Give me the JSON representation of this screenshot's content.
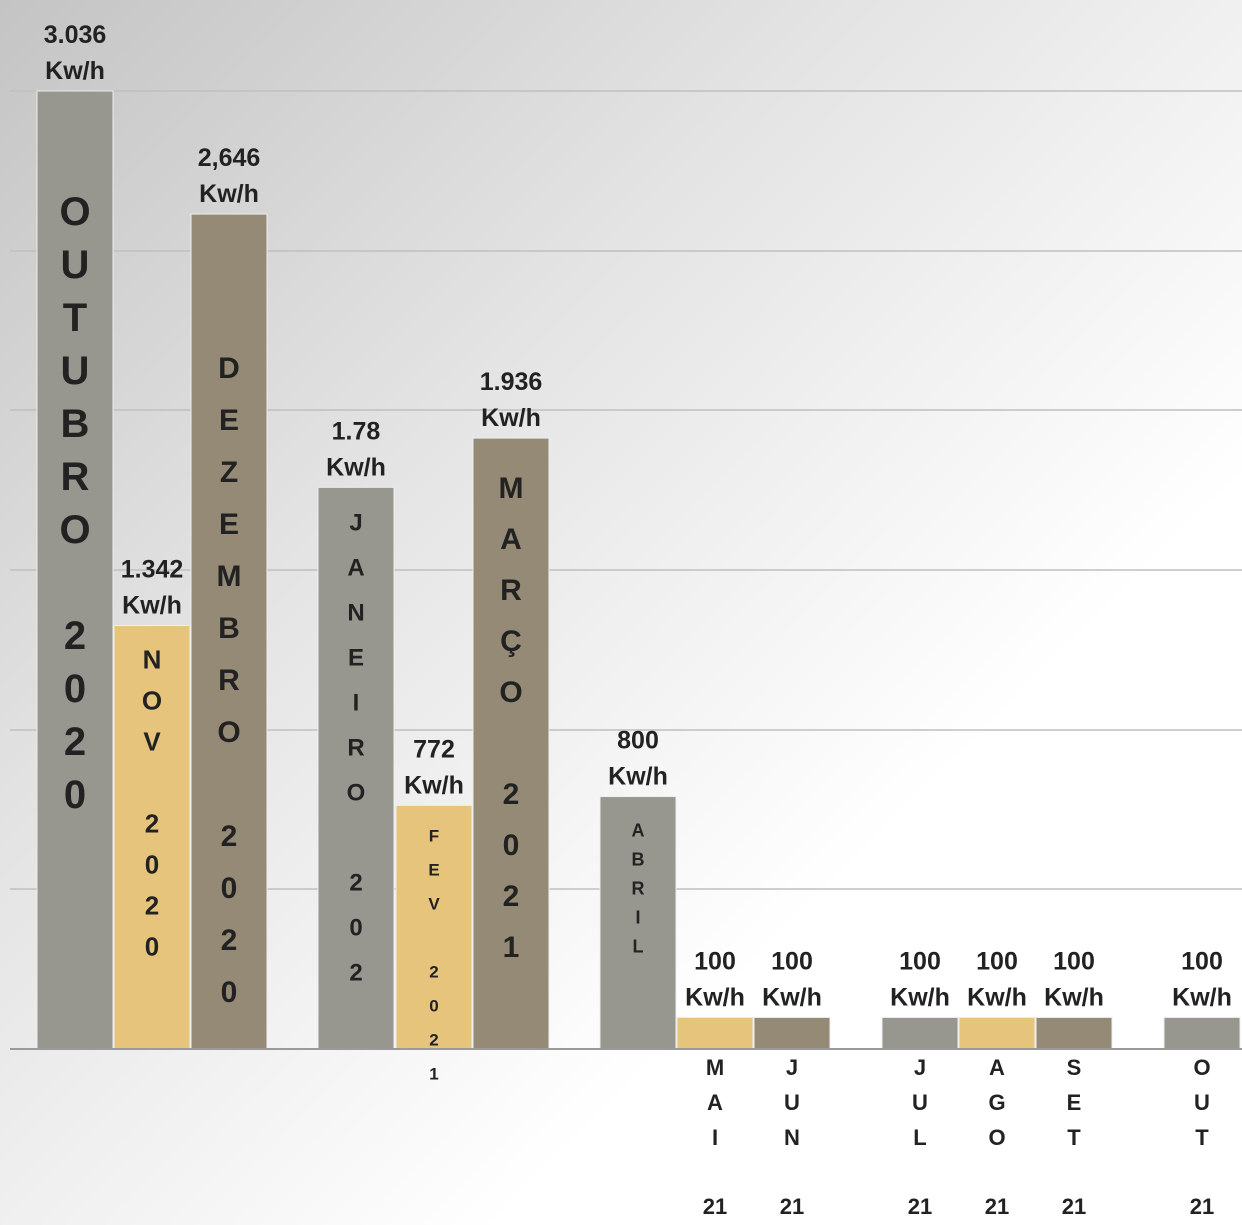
{
  "chart_data": {
    "type": "bar",
    "grid": true,
    "legend": "none",
    "ylim": [
      0,
      3300
    ],
    "bars": [
      {
        "value": 3036,
        "label": [
          "3.036",
          "Kw/h"
        ],
        "inner": [
          "O",
          "U",
          "T",
          "U",
          "B",
          "R",
          "O",
          "",
          "2",
          "0",
          "2",
          "0"
        ],
        "color": "#979790",
        "outside": []
      },
      {
        "value": 1342,
        "label": [
          "1.342",
          "Kw/h"
        ],
        "inner": [
          "N",
          "O",
          "V",
          "",
          "2",
          "0",
          "2",
          "0"
        ],
        "color": "#e7c47c",
        "outside": []
      },
      {
        "value": 2646,
        "label": [
          "2,646",
          "Kw/h"
        ],
        "inner": [
          "D",
          "E",
          "Z",
          "E",
          "M",
          "B",
          "R",
          "O",
          "",
          "2",
          "0",
          "2",
          "0"
        ],
        "color": "#958a75",
        "outside": []
      },
      {
        "value": 1780,
        "label": [
          "1.78",
          "Kw/h"
        ],
        "inner": [
          "J",
          "A",
          "N",
          "E",
          "I",
          "R",
          "O",
          "",
          "2",
          "0",
          "2"
        ],
        "color": "#979790",
        "outside": []
      },
      {
        "value": 772,
        "label": [
          "772",
          "Kw/h"
        ],
        "inner": [
          "F",
          "E",
          "V",
          "",
          "2",
          "0",
          "2",
          "1"
        ],
        "color": "#e7c47c",
        "outside": []
      },
      {
        "value": 1936,
        "label": [
          "1.936",
          "Kw/h"
        ],
        "inner": [
          "M",
          "A",
          "R",
          "Ç",
          "O",
          "",
          "2",
          "0",
          "2",
          "1"
        ],
        "color": "#958a75",
        "outside": []
      },
      {
        "value": 800,
        "label": [
          "800",
          "Kw/h"
        ],
        "inner": [
          "A",
          "B",
          "R",
          "I",
          "L"
        ],
        "color": "#979790",
        "outside": []
      },
      {
        "value": 100,
        "label": [
          "100",
          "Kw/h"
        ],
        "inner": [],
        "color": "#e7c47c",
        "outside": [
          "M",
          "A",
          "I",
          "",
          "21"
        ]
      },
      {
        "value": 100,
        "label": [
          "100",
          "Kw/h"
        ],
        "inner": [],
        "color": "#958a75",
        "outside": [
          "J",
          "U",
          "N",
          "",
          "21"
        ]
      },
      {
        "value": 100,
        "label": [
          "100",
          "Kw/h"
        ],
        "inner": [],
        "color": "#979790",
        "outside": [
          "J",
          "U",
          "L",
          "",
          "21"
        ]
      },
      {
        "value": 100,
        "label": [
          "100",
          "Kw/h"
        ],
        "inner": [],
        "color": "#e7c47c",
        "outside": [
          "A",
          "G",
          "O",
          "",
          "21"
        ]
      },
      {
        "value": 100,
        "label": [
          "100",
          "Kw/h"
        ],
        "inner": [],
        "color": "#958a75",
        "outside": [
          "S",
          "E",
          "T",
          "",
          "21"
        ]
      },
      {
        "value": 100,
        "label": [
          "100",
          "Kw/h"
        ],
        "inner": [],
        "color": "#979790",
        "outside": [
          "O",
          "U",
          "T",
          "",
          "21"
        ]
      }
    ]
  }
}
